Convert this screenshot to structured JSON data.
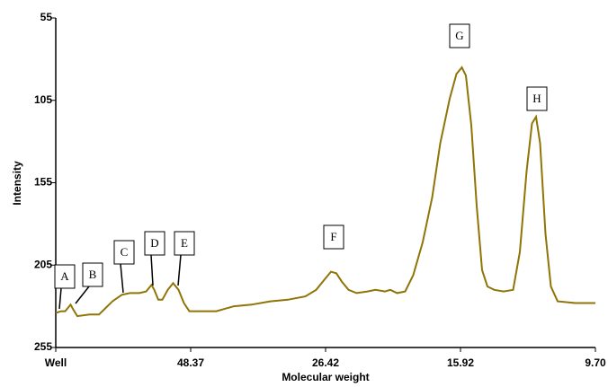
{
  "chart_data": {
    "type": "line",
    "x_label": "Molecular weight",
    "y_label": "Intensity",
    "xlim": [
      0,
      4
    ],
    "xticks": [
      {
        "value": 0,
        "label": "Well"
      },
      {
        "value": 1,
        "label": "48.37"
      },
      {
        "value": 2,
        "label": "26.42"
      },
      {
        "value": 3,
        "label": "15.92"
      },
      {
        "value": 4,
        "label": "9.70"
      }
    ],
    "ylim": [
      255,
      55
    ],
    "yticks": [
      55,
      105,
      155,
      205,
      255
    ],
    "annotations": [
      "A",
      "B",
      "C",
      "D",
      "E",
      "F",
      "G",
      "H"
    ],
    "series": [
      {
        "color": "#8f7406",
        "x": [
          0,
          0.04,
          0.07,
          0.11,
          0.13,
          0.16,
          0.25,
          0.32,
          0.37,
          0.42,
          0.49,
          0.55,
          0.62,
          0.67,
          0.71,
          0.73,
          0.76,
          0.79,
          0.83,
          0.87,
          0.91,
          0.95,
          0.99,
          1.09,
          1.19,
          1.32,
          1.45,
          1.59,
          1.72,
          1.85,
          1.93,
          2.0,
          2.04,
          2.08,
          2.12,
          2.17,
          2.23,
          2.31,
          2.37,
          2.44,
          2.48,
          2.53,
          2.59,
          2.65,
          2.72,
          2.79,
          2.85,
          2.92,
          2.97,
          3.01,
          3.04,
          3.08,
          3.12,
          3.16,
          3.2,
          3.25,
          3.32,
          3.39,
          3.44,
          3.49,
          3.53,
          3.56,
          3.59,
          3.63,
          3.67,
          3.72,
          3.85,
          4
        ],
        "values": [
          234,
          233,
          233,
          229,
          232,
          236,
          235,
          235,
          231,
          227,
          223,
          222,
          222,
          221,
          217,
          220,
          226,
          226,
          220,
          216,
          220,
          228,
          233,
          233,
          233,
          230,
          229,
          227,
          226,
          224,
          220,
          213,
          209,
          210,
          215,
          220,
          222,
          221,
          220,
          221,
          220,
          222,
          221,
          211,
          191,
          164,
          131,
          104,
          89,
          85,
          90,
          120,
          169,
          208,
          218,
          220,
          221,
          220,
          197,
          148,
          119,
          115,
          131,
          186,
          218,
          227,
          228,
          228
        ]
      }
    ]
  }
}
